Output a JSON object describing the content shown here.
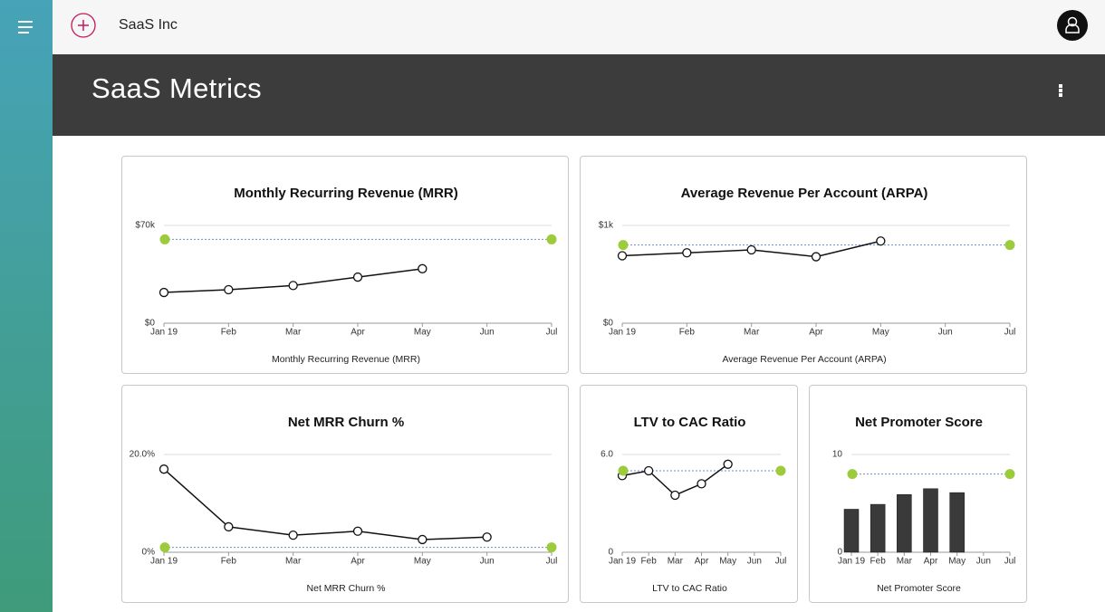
{
  "app": {
    "brand": "SaaS Inc",
    "page_title": "SaaS Metrics"
  },
  "chart_data": [
    {
      "type": "line",
      "title": "Monthly Recurring Revenue (MRR)",
      "x_label": "Monthly Recurring Revenue (MRR)",
      "categories": [
        "Jan 19",
        "Feb",
        "Mar",
        "Apr",
        "May",
        "Jun",
        "Jul"
      ],
      "series": [
        {
          "color": "#111111",
          "values": [
            22000,
            24000,
            27000,
            33000,
            39000,
            null,
            null
          ]
        }
      ],
      "target": 60000,
      "target_color": "#9ccb3b",
      "ylim": [
        0,
        70000
      ],
      "yticks": [
        {
          "value": 0,
          "label": "$0"
        },
        {
          "value": 70000,
          "label": "$70k"
        }
      ]
    },
    {
      "type": "line",
      "title": "Average Revenue Per Account (ARPA)",
      "x_label": "Average Revenue Per Account (ARPA)",
      "categories": [
        "Jan 19",
        "Feb",
        "Mar",
        "Apr",
        "May",
        "Jun",
        "Jul"
      ],
      "series": [
        {
          "color": "#111111",
          "values": [
            690,
            720,
            750,
            680,
            840,
            null,
            null
          ]
        }
      ],
      "target": 800,
      "target_color": "#9ccb3b",
      "ylim": [
        0,
        1000
      ],
      "yticks": [
        {
          "value": 0,
          "label": "$0"
        },
        {
          "value": 1000,
          "label": "$1k"
        }
      ]
    },
    {
      "type": "line",
      "title": "Net MRR Churn %",
      "x_label": "Net MRR Churn %",
      "categories": [
        "Jan 19",
        "Feb",
        "Mar",
        "Apr",
        "May",
        "Jun",
        "Jul"
      ],
      "series": [
        {
          "color": "#111111",
          "values": [
            17.0,
            5.2,
            3.5,
            4.3,
            2.6,
            3.1,
            null
          ]
        }
      ],
      "target": 1,
      "target_color": "#9ccb3b",
      "ylim": [
        0,
        20
      ],
      "yticks": [
        {
          "value": 0,
          "label": "0%"
        },
        {
          "value": 20,
          "label": "20.0%"
        }
      ]
    },
    {
      "type": "line",
      "title": "LTV to CAC Ratio",
      "x_label": "LTV to CAC Ratio",
      "categories": [
        "Jan 19",
        "Feb",
        "Mar",
        "Apr",
        "May",
        "Jun",
        "Jul"
      ],
      "series": [
        {
          "color": "#111111",
          "values": [
            4.7,
            5.0,
            3.5,
            4.2,
            5.4,
            null,
            null
          ]
        }
      ],
      "target": 5,
      "target_color": "#9ccb3b",
      "ylim": [
        0,
        6
      ],
      "yticks": [
        0,
        {
          "value": 6,
          "label": "6.0"
        }
      ]
    },
    {
      "type": "bar",
      "title": "Net Promoter Score",
      "x_label": "Net Promoter Score",
      "categories": [
        "Jan 19",
        "Feb",
        "Mar",
        "Apr",
        "May",
        "Jun",
        "Jul"
      ],
      "values": [
        4.4,
        4.9,
        5.9,
        6.5,
        6.1,
        null,
        null
      ],
      "color": "#3a3a3a",
      "target": 8,
      "target_color": "#9ccb3b",
      "ylim": [
        0,
        10
      ],
      "yticks": [
        0,
        10
      ]
    }
  ]
}
